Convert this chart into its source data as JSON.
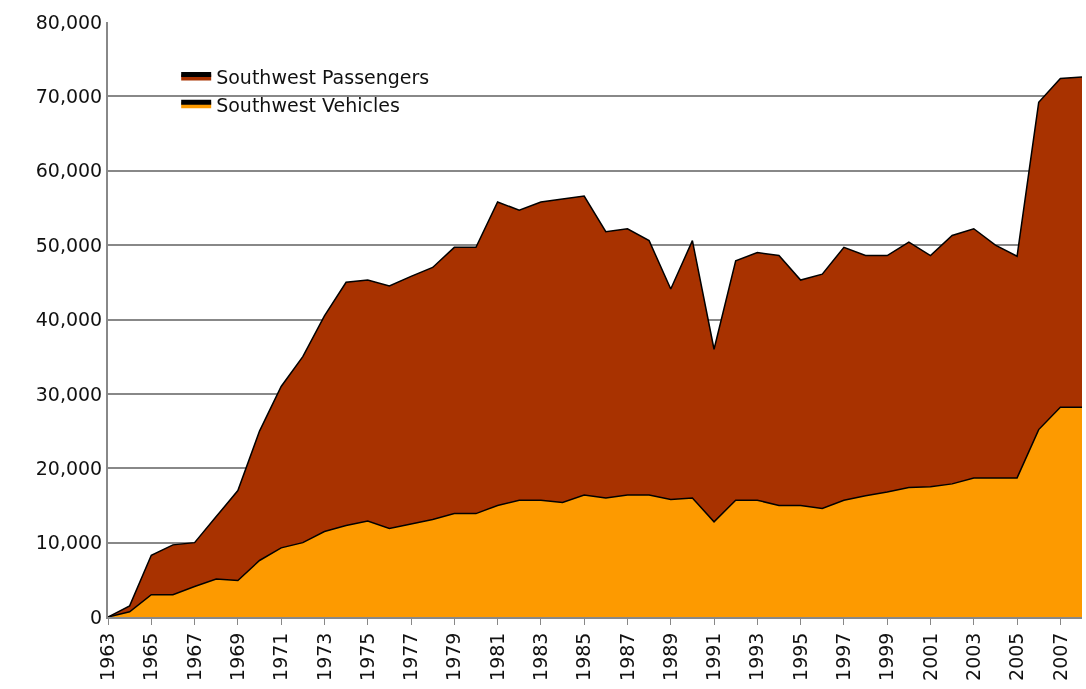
{
  "chart_data": {
    "type": "area",
    "x": [
      1963,
      1964,
      1965,
      1966,
      1967,
      1968,
      1969,
      1970,
      1971,
      1972,
      1973,
      1974,
      1975,
      1976,
      1977,
      1978,
      1979,
      1980,
      1981,
      1982,
      1983,
      1984,
      1985,
      1986,
      1987,
      1988,
      1989,
      1990,
      1991,
      1992,
      1993,
      1994,
      1995,
      1996,
      1997,
      1998,
      1999,
      2000,
      2001,
      2002,
      2003,
      2004,
      2005,
      2006,
      2007,
      2008
    ],
    "series": [
      {
        "name": "Southwest Passengers",
        "color": "#a83200",
        "values": [
          0,
          1500,
          8300,
          9700,
          10000,
          13500,
          17000,
          25000,
          31000,
          35000,
          40500,
          45000,
          45300,
          44500,
          45800,
          47000,
          49700,
          49700,
          55800,
          54700,
          55800,
          56200,
          56600,
          51800,
          52200,
          50600,
          44100,
          50600,
          36000,
          47900,
          49000,
          48600,
          45300,
          46100,
          49700,
          48600,
          48600,
          50400,
          48600,
          51300,
          52200,
          50000,
          48500,
          69200,
          72400,
          72600
        ]
      },
      {
        "name": "Southwest Vehicles",
        "color": "#fd9a00",
        "values": [
          0,
          700,
          3000,
          3000,
          4100,
          5100,
          4900,
          7600,
          9300,
          10000,
          11500,
          12300,
          12900,
          11900,
          12500,
          13100,
          13900,
          13900,
          15000,
          15700,
          15700,
          15400,
          16400,
          16000,
          16400,
          16400,
          15800,
          16000,
          12800,
          15700,
          15700,
          15000,
          15000,
          14600,
          15700,
          16300,
          16800,
          17400,
          17500,
          17900,
          18700,
          18700,
          18700,
          25200,
          28200,
          28200
        ]
      }
    ],
    "xlim": [
      1963,
      2008
    ],
    "xticks": [
      1963,
      1965,
      1967,
      1969,
      1971,
      1973,
      1975,
      1977,
      1979,
      1981,
      1983,
      1985,
      1987,
      1989,
      1991,
      1993,
      1995,
      1997,
      1999,
      2001,
      2003,
      2005,
      2007
    ],
    "ylim": [
      0,
      80000
    ],
    "yticks": [
      {
        "value": 0,
        "label": "0"
      },
      {
        "value": 10000,
        "label": "10,000"
      },
      {
        "value": 20000,
        "label": "20,000"
      },
      {
        "value": 30000,
        "label": "30,000"
      },
      {
        "value": 40000,
        "label": "40,000"
      },
      {
        "value": 50000,
        "label": "50,000"
      },
      {
        "value": 60000,
        "label": "60,000"
      },
      {
        "value": 70000,
        "label": "70,000"
      },
      {
        "value": 80000,
        "label": "80,000"
      }
    ],
    "grid": "y",
    "legend": "top left",
    "marker": "none",
    "line_style": "solid"
  }
}
